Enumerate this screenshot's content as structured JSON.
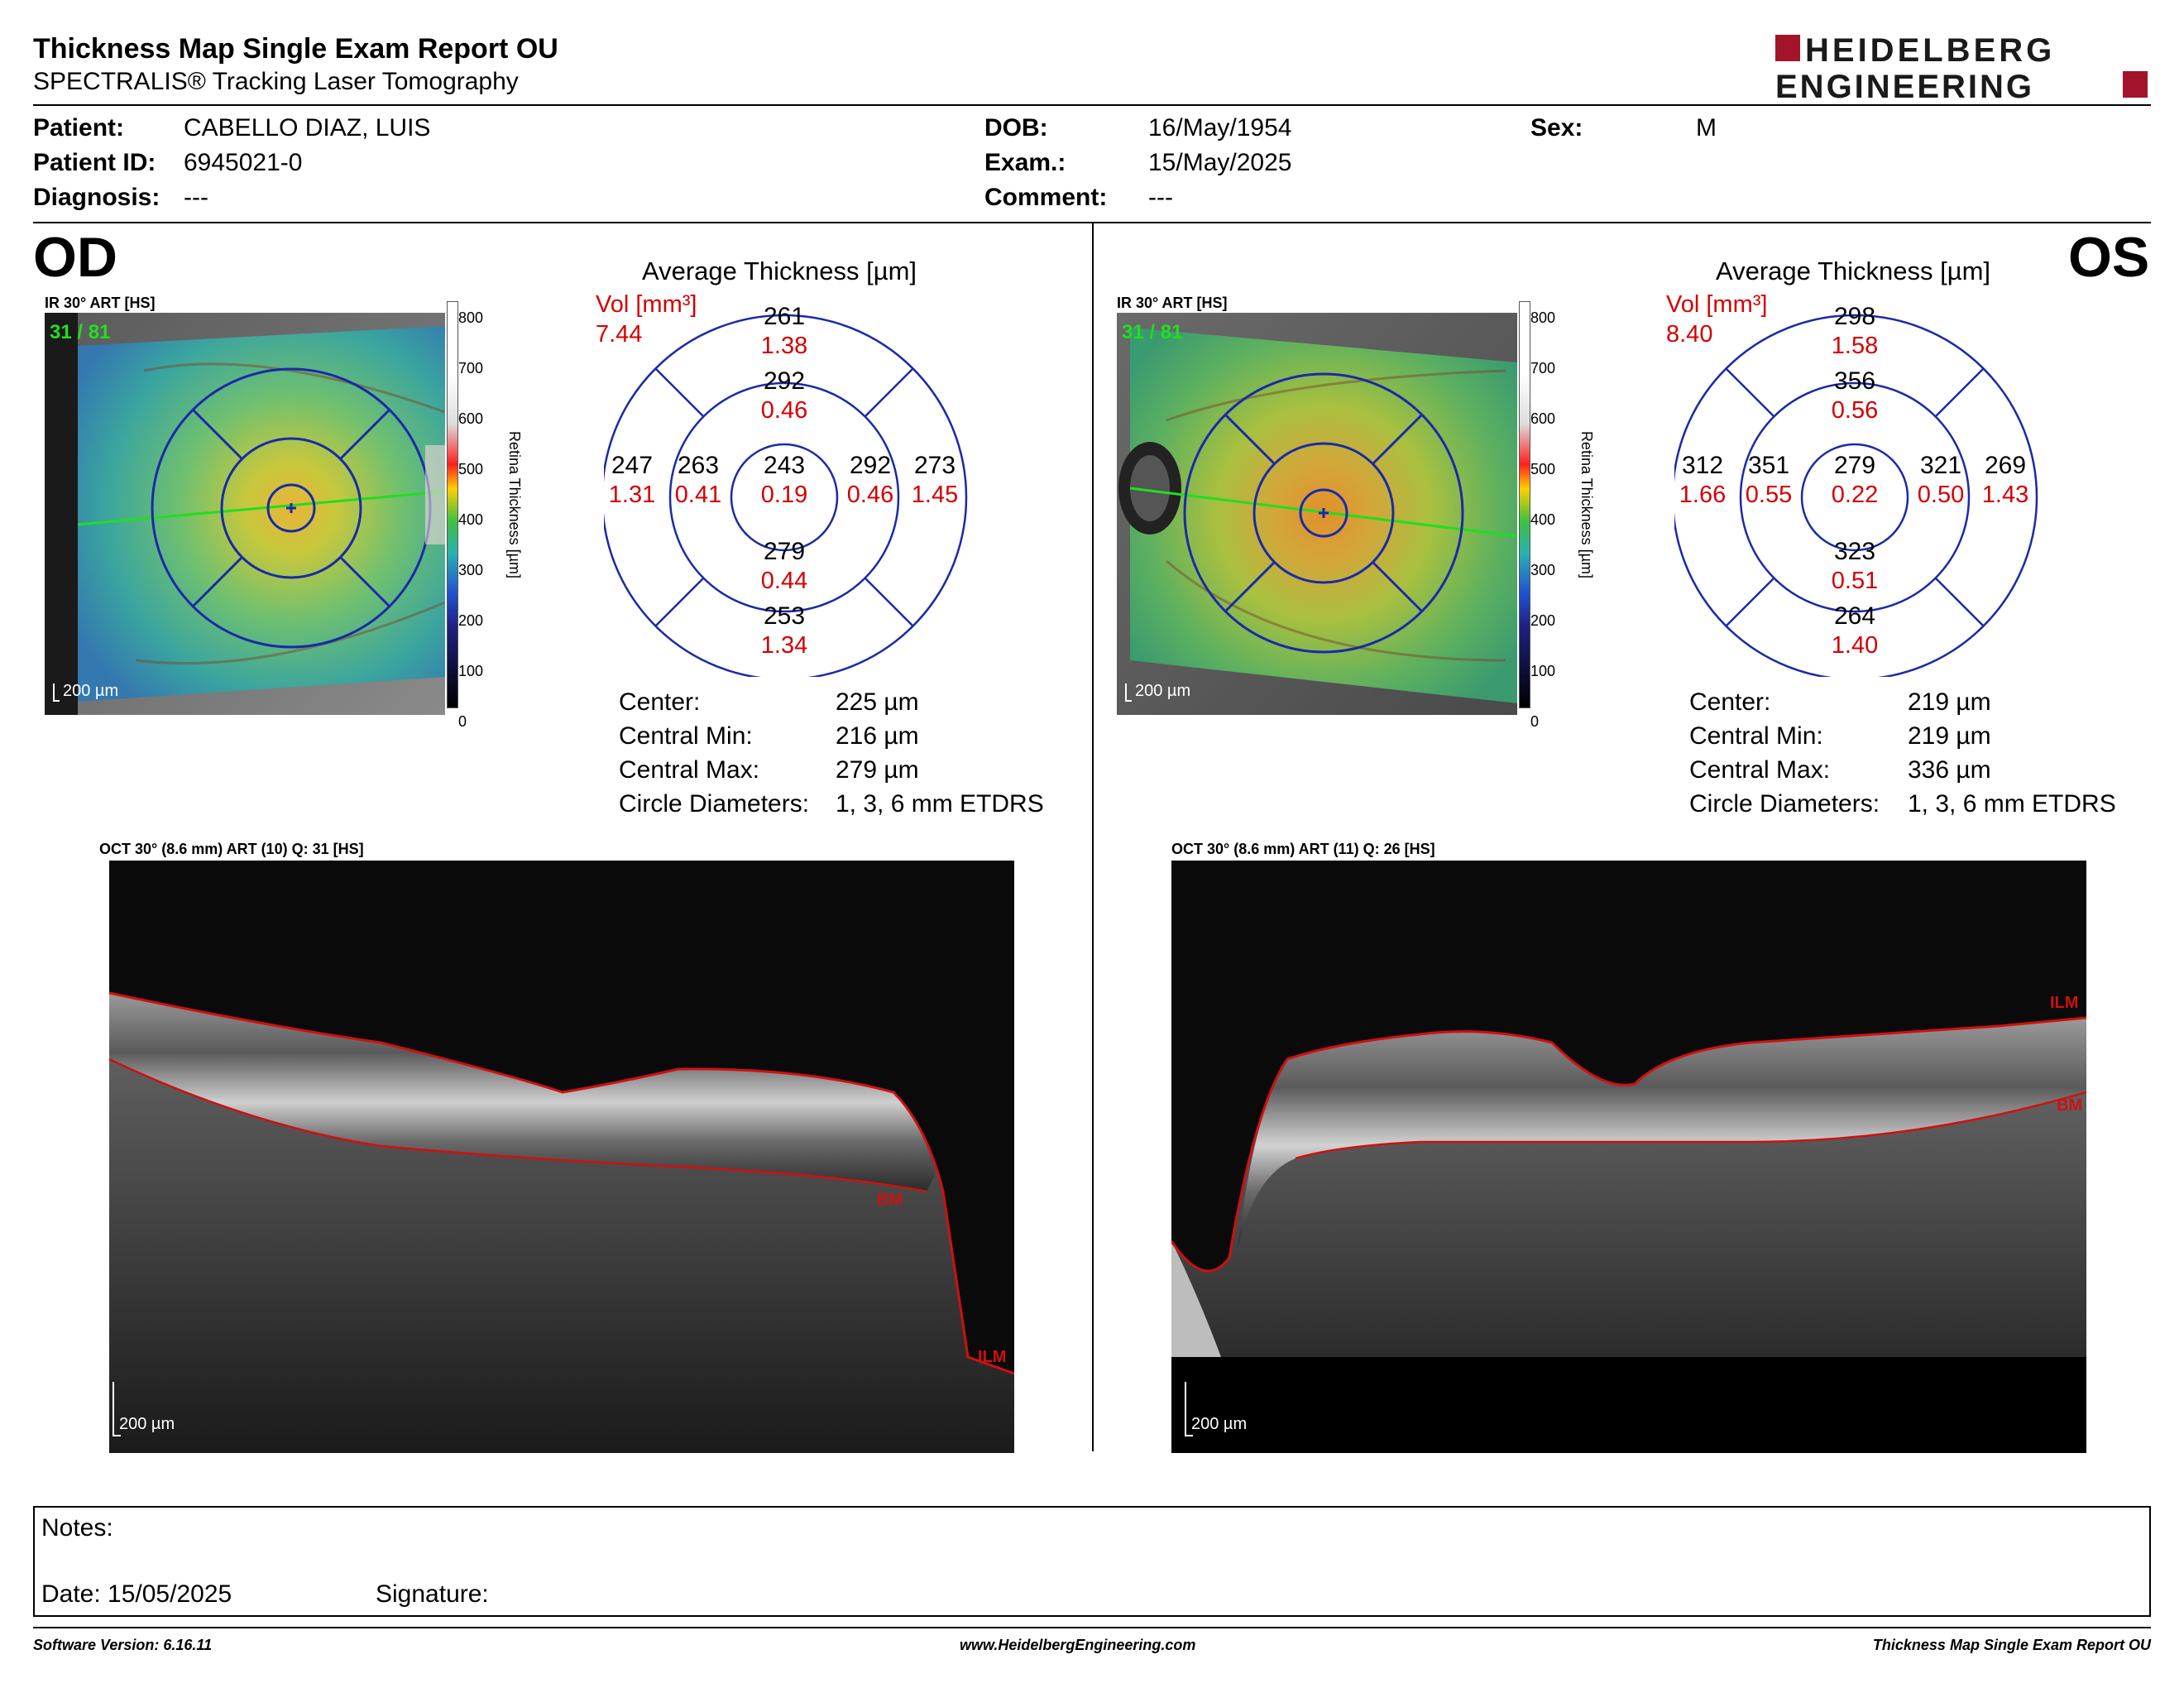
{
  "report": {
    "title": "Thickness Map Single Exam Report OU",
    "subtitle": "SPECTRALIS® Tracking Laser Tomography",
    "logo_line1": "HEIDELBERG",
    "logo_line2": "ENGINEERING"
  },
  "patient": {
    "patient_label": "Patient:",
    "patient_value": "CABELLO DIAZ, LUIS",
    "id_label": "Patient ID:",
    "id_value": "6945021-0",
    "diagnosis_label": "Diagnosis:",
    "diagnosis_value": "---",
    "dob_label": "DOB:",
    "dob_value": "16/May/1954",
    "exam_label": "Exam.:",
    "exam_value": "15/May/2025",
    "comment_label": "Comment:",
    "comment_value": "---",
    "sex_label": "Sex:",
    "sex_value": "M"
  },
  "colorbar": {
    "title": "Retina  Thickness [µm]",
    "ticks": [
      "800",
      "700",
      "600",
      "500",
      "400",
      "300",
      "200",
      "100",
      "0"
    ]
  },
  "od": {
    "eye": "OD",
    "ir_label": "IR 30° ART [HS]",
    "ir_count": "31 / 81",
    "scale_label": "200 µm",
    "avg_title": "Average Thickness [µm]",
    "vol_label": "Vol [mm³]",
    "vol_value": "7.44",
    "grid": {
      "center": {
        "t": "243",
        "v": "0.19"
      },
      "inner_sup": {
        "t": "292",
        "v": "0.46"
      },
      "inner_inf": {
        "t": "279",
        "v": "0.44"
      },
      "inner_left": {
        "t": "263",
        "v": "0.41"
      },
      "inner_right": {
        "t": "292",
        "v": "0.46"
      },
      "outer_sup": {
        "t": "261",
        "v": "1.38"
      },
      "outer_inf": {
        "t": "253",
        "v": "1.34"
      },
      "outer_left": {
        "t": "247",
        "v": "1.31"
      },
      "outer_right": {
        "t": "273",
        "v": "1.45"
      }
    },
    "stats": {
      "center_label": "Center:",
      "center_value": "225 µm",
      "min_label": "Central Min:",
      "min_value": "216 µm",
      "max_label": "Central Max:",
      "max_value": "279 µm",
      "circ_label": "Circle Diameters:",
      "circ_value": "1, 3, 6 mm ETDRS"
    },
    "oct_label": "OCT 30° (8.6 mm) ART (10) Q: 31 [HS]",
    "oct_scale": "200 µm",
    "bm_label": "BM",
    "ilm_label": "ILM"
  },
  "os": {
    "eye": "OS",
    "ir_label": "IR 30° ART [HS]",
    "ir_count": "31 / 81",
    "scale_label": "200 µm",
    "avg_title": "Average Thickness [µm]",
    "vol_label": "Vol [mm³]",
    "vol_value": "8.40",
    "grid": {
      "center": {
        "t": "279",
        "v": "0.22"
      },
      "inner_sup": {
        "t": "356",
        "v": "0.56"
      },
      "inner_inf": {
        "t": "323",
        "v": "0.51"
      },
      "inner_left": {
        "t": "351",
        "v": "0.55"
      },
      "inner_right": {
        "t": "321",
        "v": "0.50"
      },
      "outer_sup": {
        "t": "298",
        "v": "1.58"
      },
      "outer_inf": {
        "t": "264",
        "v": "1.40"
      },
      "outer_left": {
        "t": "312",
        "v": "1.66"
      },
      "outer_right": {
        "t": "269",
        "v": "1.43"
      }
    },
    "stats": {
      "center_label": "Center:",
      "center_value": "219 µm",
      "min_label": "Central Min:",
      "min_value": "219 µm",
      "max_label": "Central Max:",
      "max_value": "336 µm",
      "circ_label": "Circle Diameters:",
      "circ_value": "1, 3, 6 mm ETDRS"
    },
    "oct_label": "OCT 30° (8.6 mm) ART (11) Q: 26 [HS]",
    "oct_scale": "200 µm",
    "bm_label": "BM",
    "ilm_label": "ILM"
  },
  "notes": {
    "notes_label": "Notes:",
    "date_label": "Date: 15/05/2025",
    "signature_label": "Signature:"
  },
  "footer": {
    "software": "Software Version: 6.16.11",
    "website": "www.HeidelbergEngineering.com",
    "report_name": "Thickness Map Single Exam Report OU"
  },
  "colors": {
    "grid_blue": "#1a2aa8",
    "vol_red": "#d40000",
    "logo_red": "#a3142a",
    "scan_green": "#22dd22",
    "segment_red": "#d01010"
  }
}
